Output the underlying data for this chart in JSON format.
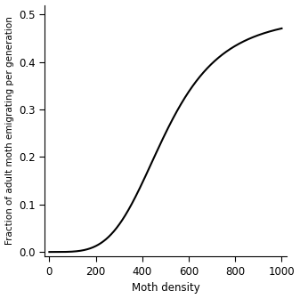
{
  "title": "",
  "xlabel": "Moth density",
  "ylabel": "Fraction of adult moth emigrating per generation",
  "xlim": [
    -20,
    1020
  ],
  "ylim": [
    -0.01,
    0.52
  ],
  "xticks": [
    0,
    200,
    400,
    600,
    800,
    1000
  ],
  "yticks": [
    0.0,
    0.1,
    0.2,
    0.3,
    0.4,
    0.5
  ],
  "line_color": "#000000",
  "line_width": 1.5,
  "background_color": "#ffffff",
  "K": 1000,
  "e_max": 0.5,
  "x_min": 0,
  "x_max": 1000,
  "n_points": 1000,
  "hill_n": 4,
  "hill_k": 500
}
